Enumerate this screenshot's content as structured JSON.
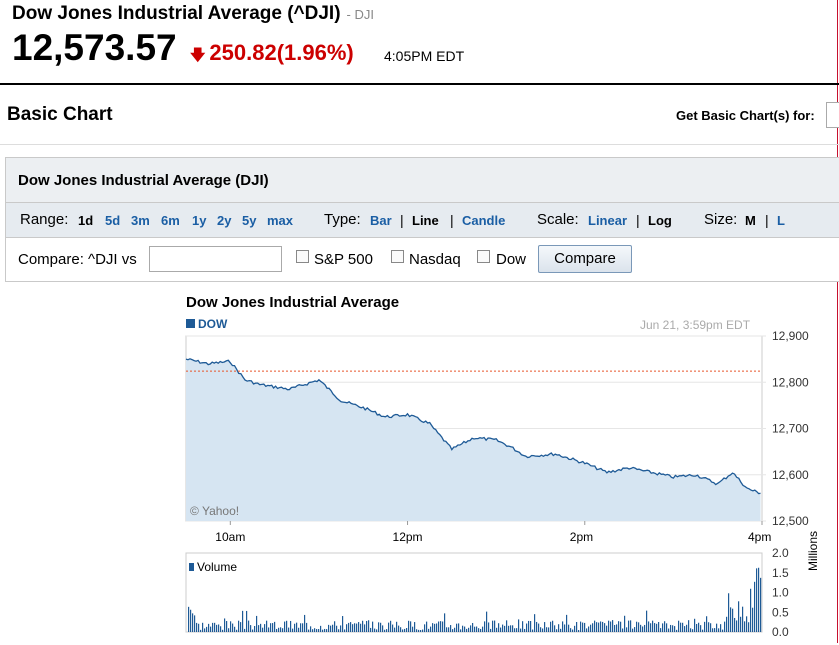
{
  "quote": {
    "name": "Dow Jones Industrial Average (^DJI)",
    "symbol": "- DJI",
    "price": "12,573.57",
    "change": "250.82",
    "percent": "(1.96%)",
    "time": "4:05PM EDT",
    "down_color": "#cc0000"
  },
  "header": {
    "section_title": "Basic Chart",
    "get_basic": "Get Basic Chart(s) for:"
  },
  "panel": {
    "title": "Dow Jones Industrial Average (DJI)",
    "range_label": "Range:",
    "ranges": [
      "1d",
      "5d",
      "3m",
      "6m",
      "1y",
      "2y",
      "5y",
      "max"
    ],
    "type_label": "Type:",
    "types": [
      "Bar",
      "Line",
      "Candle"
    ],
    "scale_label": "Scale:",
    "scales": [
      "Linear",
      "Log"
    ],
    "size_label": "Size:",
    "sizes": [
      "M",
      "L"
    ],
    "compare_label": "Compare: ^DJI vs",
    "compare_value": "",
    "compare_options": [
      "S&P 500",
      "Nasdaq",
      "Dow"
    ],
    "compare_button": "Compare"
  },
  "chart": {
    "title": "Dow Jones Industrial Average",
    "series_name": "DOW",
    "timestamp": "Jun 21, 3:59pm EDT",
    "watermark": "© Yahoo!",
    "volume_label": "Volume",
    "volume_axis_label": "Millions",
    "line_color": "#1e5a96",
    "fill_color": "#d6e5f2"
  },
  "chart_data": [
    {
      "type": "area",
      "title": "Dow Jones Industrial Average",
      "series": [
        {
          "name": "DOW",
          "x": [
            "9:30",
            "9:45",
            "10:00",
            "10:10",
            "10:20",
            "10:40",
            "11:00",
            "11:15",
            "11:30",
            "11:45",
            "12:00",
            "12:15",
            "12:30",
            "12:45",
            "1:00",
            "1:10",
            "1:20",
            "1:40",
            "2:00",
            "2:15",
            "2:30",
            "2:45",
            "3:00",
            "3:15",
            "3:30",
            "3:40",
            "3:50",
            "3:59"
          ],
          "values": [
            12850,
            12840,
            12845,
            12805,
            12795,
            12785,
            12805,
            12760,
            12745,
            12725,
            12730,
            12710,
            12655,
            12680,
            12675,
            12660,
            12640,
            12645,
            12625,
            12605,
            12615,
            12605,
            12595,
            12600,
            12580,
            12605,
            12570,
            12560
          ]
        }
      ],
      "yticks": [
        12500,
        12600,
        12700,
        12800,
        12900
      ],
      "ylim": [
        12500,
        12900
      ],
      "prev_close": 12824,
      "xticks": [
        "10am",
        "12pm",
        "2pm",
        "4pm"
      ]
    },
    {
      "type": "bar",
      "title": "Volume",
      "ylabel": "Millions",
      "yticks": [
        "0.0",
        "0.5",
        "1.0",
        "1.5",
        "2.0"
      ],
      "ylim": [
        0,
        2.0
      ]
    }
  ]
}
